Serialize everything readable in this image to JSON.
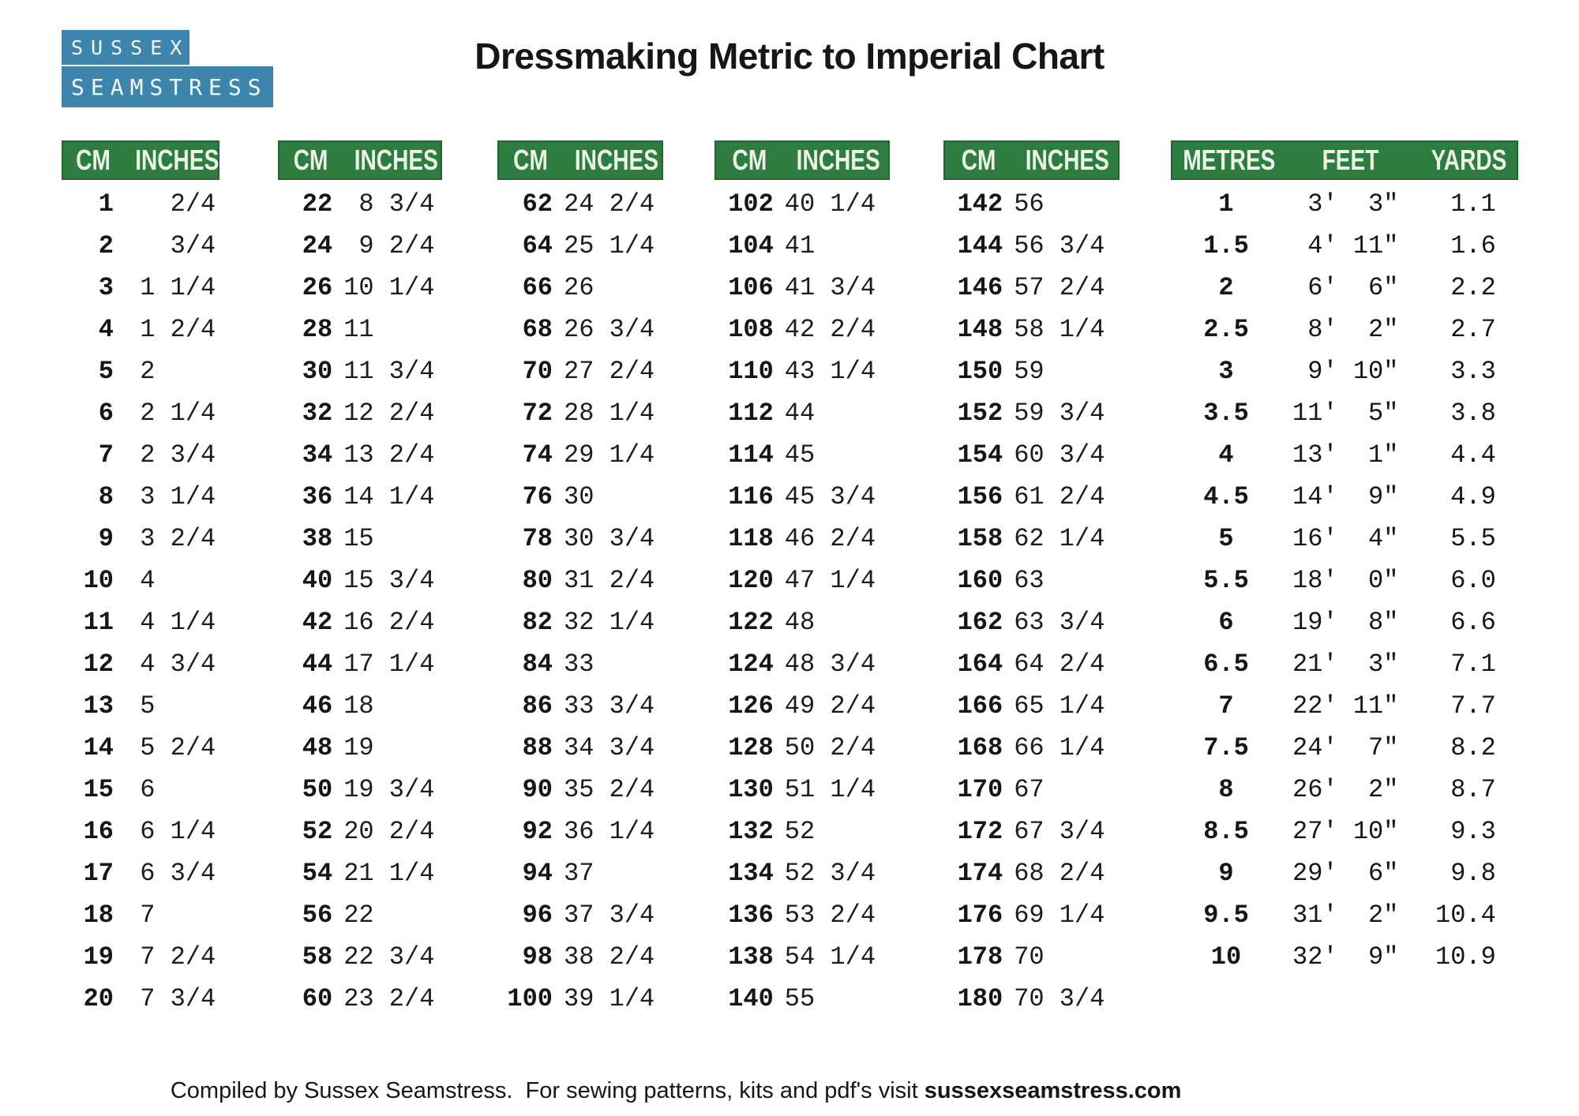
{
  "logo": {
    "line1": "SUSSEX",
    "line2": "SEAMSTRESS"
  },
  "title": "Dressmaking Metric to Imperial Chart",
  "footer": {
    "text": "Compiled by Sussex Seamstress.  For sewing patterns, kits and pdf's visit ",
    "link": "sussexseamstress.com"
  },
  "colors": {
    "header_green": "#2e7c3f",
    "logo_blue": "#3d85ad"
  },
  "cm_tables": [
    {
      "headers": [
        "CM",
        "INCHES"
      ],
      "rows": [
        [
          "1",
          "   2/4"
        ],
        [
          "2",
          "   3/4"
        ],
        [
          "3",
          " 1 1/4"
        ],
        [
          "4",
          " 1 2/4"
        ],
        [
          "5",
          " 2"
        ],
        [
          "6",
          " 2 1/4"
        ],
        [
          "7",
          " 2 3/4"
        ],
        [
          "8",
          " 3 1/4"
        ],
        [
          "9",
          " 3 2/4"
        ],
        [
          "10",
          " 4"
        ],
        [
          "11",
          " 4 1/4"
        ],
        [
          "12",
          " 4 3/4"
        ],
        [
          "13",
          " 5"
        ],
        [
          "14",
          " 5 2/4"
        ],
        [
          "15",
          " 6"
        ],
        [
          "16",
          " 6 1/4"
        ],
        [
          "17",
          " 6 3/4"
        ],
        [
          "18",
          " 7"
        ],
        [
          "19",
          " 7 2/4"
        ],
        [
          "20",
          " 7 3/4"
        ]
      ]
    },
    {
      "headers": [
        "CM",
        "INCHES"
      ],
      "rows": [
        [
          "22",
          " 8 3/4"
        ],
        [
          "24",
          " 9 2/4"
        ],
        [
          "26",
          "10 1/4"
        ],
        [
          "28",
          "11"
        ],
        [
          "30",
          "11 3/4"
        ],
        [
          "32",
          "12 2/4"
        ],
        [
          "34",
          "13 2/4"
        ],
        [
          "36",
          "14 1/4"
        ],
        [
          "38",
          "15"
        ],
        [
          "40",
          "15 3/4"
        ],
        [
          "42",
          "16 2/4"
        ],
        [
          "44",
          "17 1/4"
        ],
        [
          "46",
          "18"
        ],
        [
          "48",
          "19"
        ],
        [
          "50",
          "19 3/4"
        ],
        [
          "52",
          "20 2/4"
        ],
        [
          "54",
          "21 1/4"
        ],
        [
          "56",
          "22"
        ],
        [
          "58",
          "22 3/4"
        ],
        [
          "60",
          "23 2/4"
        ]
      ]
    },
    {
      "headers": [
        "CM",
        "INCHES"
      ],
      "rows": [
        [
          "62",
          "24 2/4"
        ],
        [
          "64",
          "25 1/4"
        ],
        [
          "66",
          "26"
        ],
        [
          "68",
          "26 3/4"
        ],
        [
          "70",
          "27 2/4"
        ],
        [
          "72",
          "28 1/4"
        ],
        [
          "74",
          "29 1/4"
        ],
        [
          "76",
          "30"
        ],
        [
          "78",
          "30 3/4"
        ],
        [
          "80",
          "31 2/4"
        ],
        [
          "82",
          "32 1/4"
        ],
        [
          "84",
          "33"
        ],
        [
          "86",
          "33 3/4"
        ],
        [
          "88",
          "34 3/4"
        ],
        [
          "90",
          "35 2/4"
        ],
        [
          "92",
          "36 1/4"
        ],
        [
          "94",
          "37"
        ],
        [
          "96",
          "37 3/4"
        ],
        [
          "98",
          "38 2/4"
        ],
        [
          "100",
          "39 1/4"
        ]
      ]
    },
    {
      "headers": [
        "CM",
        "INCHES"
      ],
      "rows": [
        [
          "102",
          "40 1/4"
        ],
        [
          "104",
          "41"
        ],
        [
          "106",
          "41 3/4"
        ],
        [
          "108",
          "42 2/4"
        ],
        [
          "110",
          "43 1/4"
        ],
        [
          "112",
          "44"
        ],
        [
          "114",
          "45"
        ],
        [
          "116",
          "45 3/4"
        ],
        [
          "118",
          "46 2/4"
        ],
        [
          "120",
          "47 1/4"
        ],
        [
          "122",
          "48"
        ],
        [
          "124",
          "48 3/4"
        ],
        [
          "126",
          "49 2/4"
        ],
        [
          "128",
          "50 2/4"
        ],
        [
          "130",
          "51 1/4"
        ],
        [
          "132",
          "52"
        ],
        [
          "134",
          "52 3/4"
        ],
        [
          "136",
          "53 2/4"
        ],
        [
          "138",
          "54 1/4"
        ],
        [
          "140",
          "55"
        ]
      ]
    },
    {
      "headers": [
        "CM",
        "INCHES"
      ],
      "rows": [
        [
          "142",
          "56"
        ],
        [
          "144",
          "56 3/4"
        ],
        [
          "146",
          "57 2/4"
        ],
        [
          "148",
          "58 1/4"
        ],
        [
          "150",
          "59"
        ],
        [
          "152",
          "59 3/4"
        ],
        [
          "154",
          "60 3/4"
        ],
        [
          "156",
          "61 2/4"
        ],
        [
          "158",
          "62 1/4"
        ],
        [
          "160",
          "63"
        ],
        [
          "162",
          "63 3/4"
        ],
        [
          "164",
          "64 2/4"
        ],
        [
          "166",
          "65 1/4"
        ],
        [
          "168",
          "66 1/4"
        ],
        [
          "170",
          "67"
        ],
        [
          "172",
          "67 3/4"
        ],
        [
          "174",
          "68 2/4"
        ],
        [
          "176",
          "69 1/4"
        ],
        [
          "178",
          "70"
        ],
        [
          "180",
          "70 3/4"
        ]
      ]
    }
  ],
  "metres_table": {
    "headers": [
      "METRES",
      "FEET",
      "YARDS"
    ],
    "rows": [
      [
        "1",
        " 3'  3\"",
        " 1.1"
      ],
      [
        "1.5",
        " 4' 11\"",
        " 1.6"
      ],
      [
        "2",
        " 6'  6\"",
        " 2.2"
      ],
      [
        "2.5",
        " 8'  2\"",
        " 2.7"
      ],
      [
        "3",
        " 9' 10\"",
        " 3.3"
      ],
      [
        "3.5",
        "11'  5\"",
        " 3.8"
      ],
      [
        "4",
        "13'  1\"",
        " 4.4"
      ],
      [
        "4.5",
        "14'  9\"",
        " 4.9"
      ],
      [
        "5",
        "16'  4\"",
        " 5.5"
      ],
      [
        "5.5",
        "18'  0\"",
        " 6.0"
      ],
      [
        "6",
        "19'  8\"",
        " 6.6"
      ],
      [
        "6.5",
        "21'  3\"",
        " 7.1"
      ],
      [
        "7",
        "22' 11\"",
        " 7.7"
      ],
      [
        "7.5",
        "24'  7\"",
        " 8.2"
      ],
      [
        "8",
        "26'  2\"",
        " 8.7"
      ],
      [
        "8.5",
        "27' 10\"",
        " 9.3"
      ],
      [
        "9",
        "29'  6\"",
        " 9.8"
      ],
      [
        "9.5",
        "31'  2\"",
        "10.4"
      ],
      [
        "10",
        "32'  9\"",
        "10.9"
      ]
    ]
  }
}
